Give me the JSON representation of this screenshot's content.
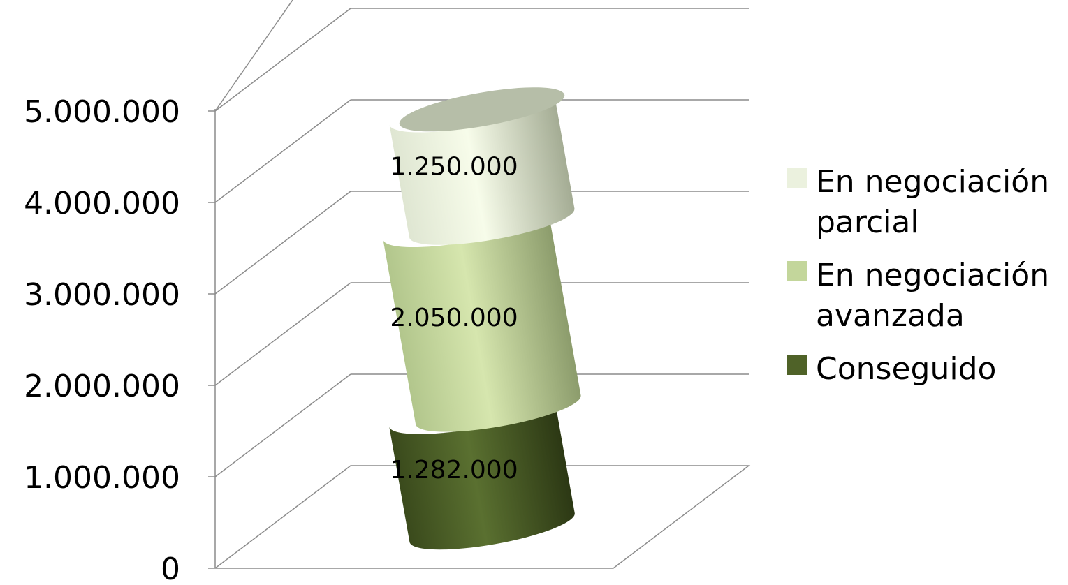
{
  "chart_data": {
    "type": "bar",
    "subtype": "stacked-3d-cylinder",
    "title": "",
    "xlabel": "",
    "ylabel": "",
    "ylim": [
      0,
      5000000
    ],
    "y_ticks": [
      0,
      1000000,
      2000000,
      3000000,
      4000000,
      5000000
    ],
    "y_tick_labels": [
      "0",
      "1.000.000",
      "2.000.000",
      "3.000.000",
      "4.000.000",
      "5.000.000"
    ],
    "grid": true,
    "legend_position": "right",
    "categories": [
      ""
    ],
    "series": [
      {
        "name": "Conseguido",
        "values": [
          1282000
        ],
        "label": "1.282.000",
        "color": "#4f6228"
      },
      {
        "name": "En negociación avanzada",
        "values": [
          2050000
        ],
        "label": "2.050.000",
        "color": "#c3d69b"
      },
      {
        "name": "En negociación parcial",
        "values": [
          1250000
        ],
        "label": "1.250.000",
        "color": "#ebf1de"
      }
    ],
    "legend": [
      {
        "text": "En negociación parcial",
        "color": "#ebf1de"
      },
      {
        "text": "En negociación avanzada",
        "color": "#c3d69b"
      },
      {
        "text": "Conseguido",
        "color": "#4f6228"
      }
    ]
  }
}
